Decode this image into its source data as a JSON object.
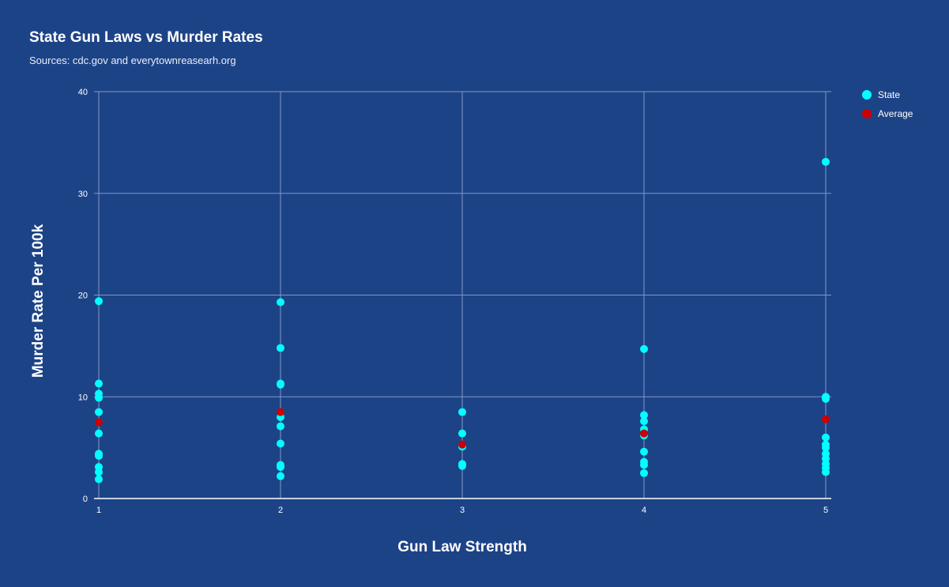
{
  "chart": {
    "title": "State Gun Laws vs Murder Rates",
    "subtitle": "Sources: cdc.gov and everytownreasearh.org",
    "x_axis_title": "Gun Law Strength",
    "y_axis_title": "Murder Rate Per 100k",
    "background_color": "#1d4387",
    "legend": [
      {
        "label": "State",
        "color": "#00ffff"
      },
      {
        "label": "Average",
        "color": "#cc0000"
      }
    ]
  },
  "chart_data": {
    "type": "scatter",
    "title": "State Gun Laws vs Murder Rates",
    "subtitle": "Sources: cdc.gov and everytownreasearh.org",
    "xlabel": "Gun Law Strength",
    "ylabel": "Murder Rate Per 100k",
    "xlim": [
      1,
      5
    ],
    "ylim": [
      0,
      40
    ],
    "x_ticks": [
      1,
      2,
      3,
      4,
      5
    ],
    "y_ticks": [
      0,
      10,
      20,
      30,
      40
    ],
    "grid": true,
    "legend_position": "right",
    "series": [
      {
        "name": "State",
        "color": "#00ffff",
        "points": [
          [
            1,
            19.4
          ],
          [
            1,
            11.3
          ],
          [
            1,
            10.3
          ],
          [
            1,
            9.9
          ],
          [
            1,
            8.5
          ],
          [
            1,
            6.4
          ],
          [
            1,
            4.4
          ],
          [
            1,
            4.2
          ],
          [
            1,
            3.1
          ],
          [
            1,
            2.6
          ],
          [
            1,
            1.9
          ],
          [
            2,
            19.3
          ],
          [
            2,
            14.8
          ],
          [
            2,
            11.3
          ],
          [
            2,
            11.2
          ],
          [
            2,
            8.0
          ],
          [
            2,
            7.1
          ],
          [
            2,
            5.4
          ],
          [
            2,
            3.3
          ],
          [
            2,
            3.1
          ],
          [
            2,
            2.2
          ],
          [
            3,
            8.5
          ],
          [
            3,
            6.4
          ],
          [
            3,
            5.1
          ],
          [
            3,
            3.4
          ],
          [
            3,
            3.2
          ],
          [
            4,
            14.7
          ],
          [
            4,
            8.2
          ],
          [
            4,
            7.6
          ],
          [
            4,
            6.8
          ],
          [
            4,
            6.2
          ],
          [
            4,
            4.6
          ],
          [
            4,
            3.6
          ],
          [
            4,
            3.3
          ],
          [
            4,
            2.5
          ],
          [
            5,
            33.1
          ],
          [
            5,
            10.0
          ],
          [
            5,
            9.8
          ],
          [
            5,
            6.0
          ],
          [
            5,
            5.3
          ],
          [
            5,
            5.0
          ],
          [
            5,
            4.4
          ],
          [
            5,
            3.9
          ],
          [
            5,
            3.4
          ],
          [
            5,
            3.0
          ],
          [
            5,
            2.6
          ]
        ]
      },
      {
        "name": "Average",
        "color": "#cc0000",
        "points": [
          [
            1,
            7.5
          ],
          [
            2,
            8.5
          ],
          [
            3,
            5.3
          ],
          [
            4,
            6.4
          ],
          [
            5,
            7.8
          ]
        ]
      }
    ]
  }
}
